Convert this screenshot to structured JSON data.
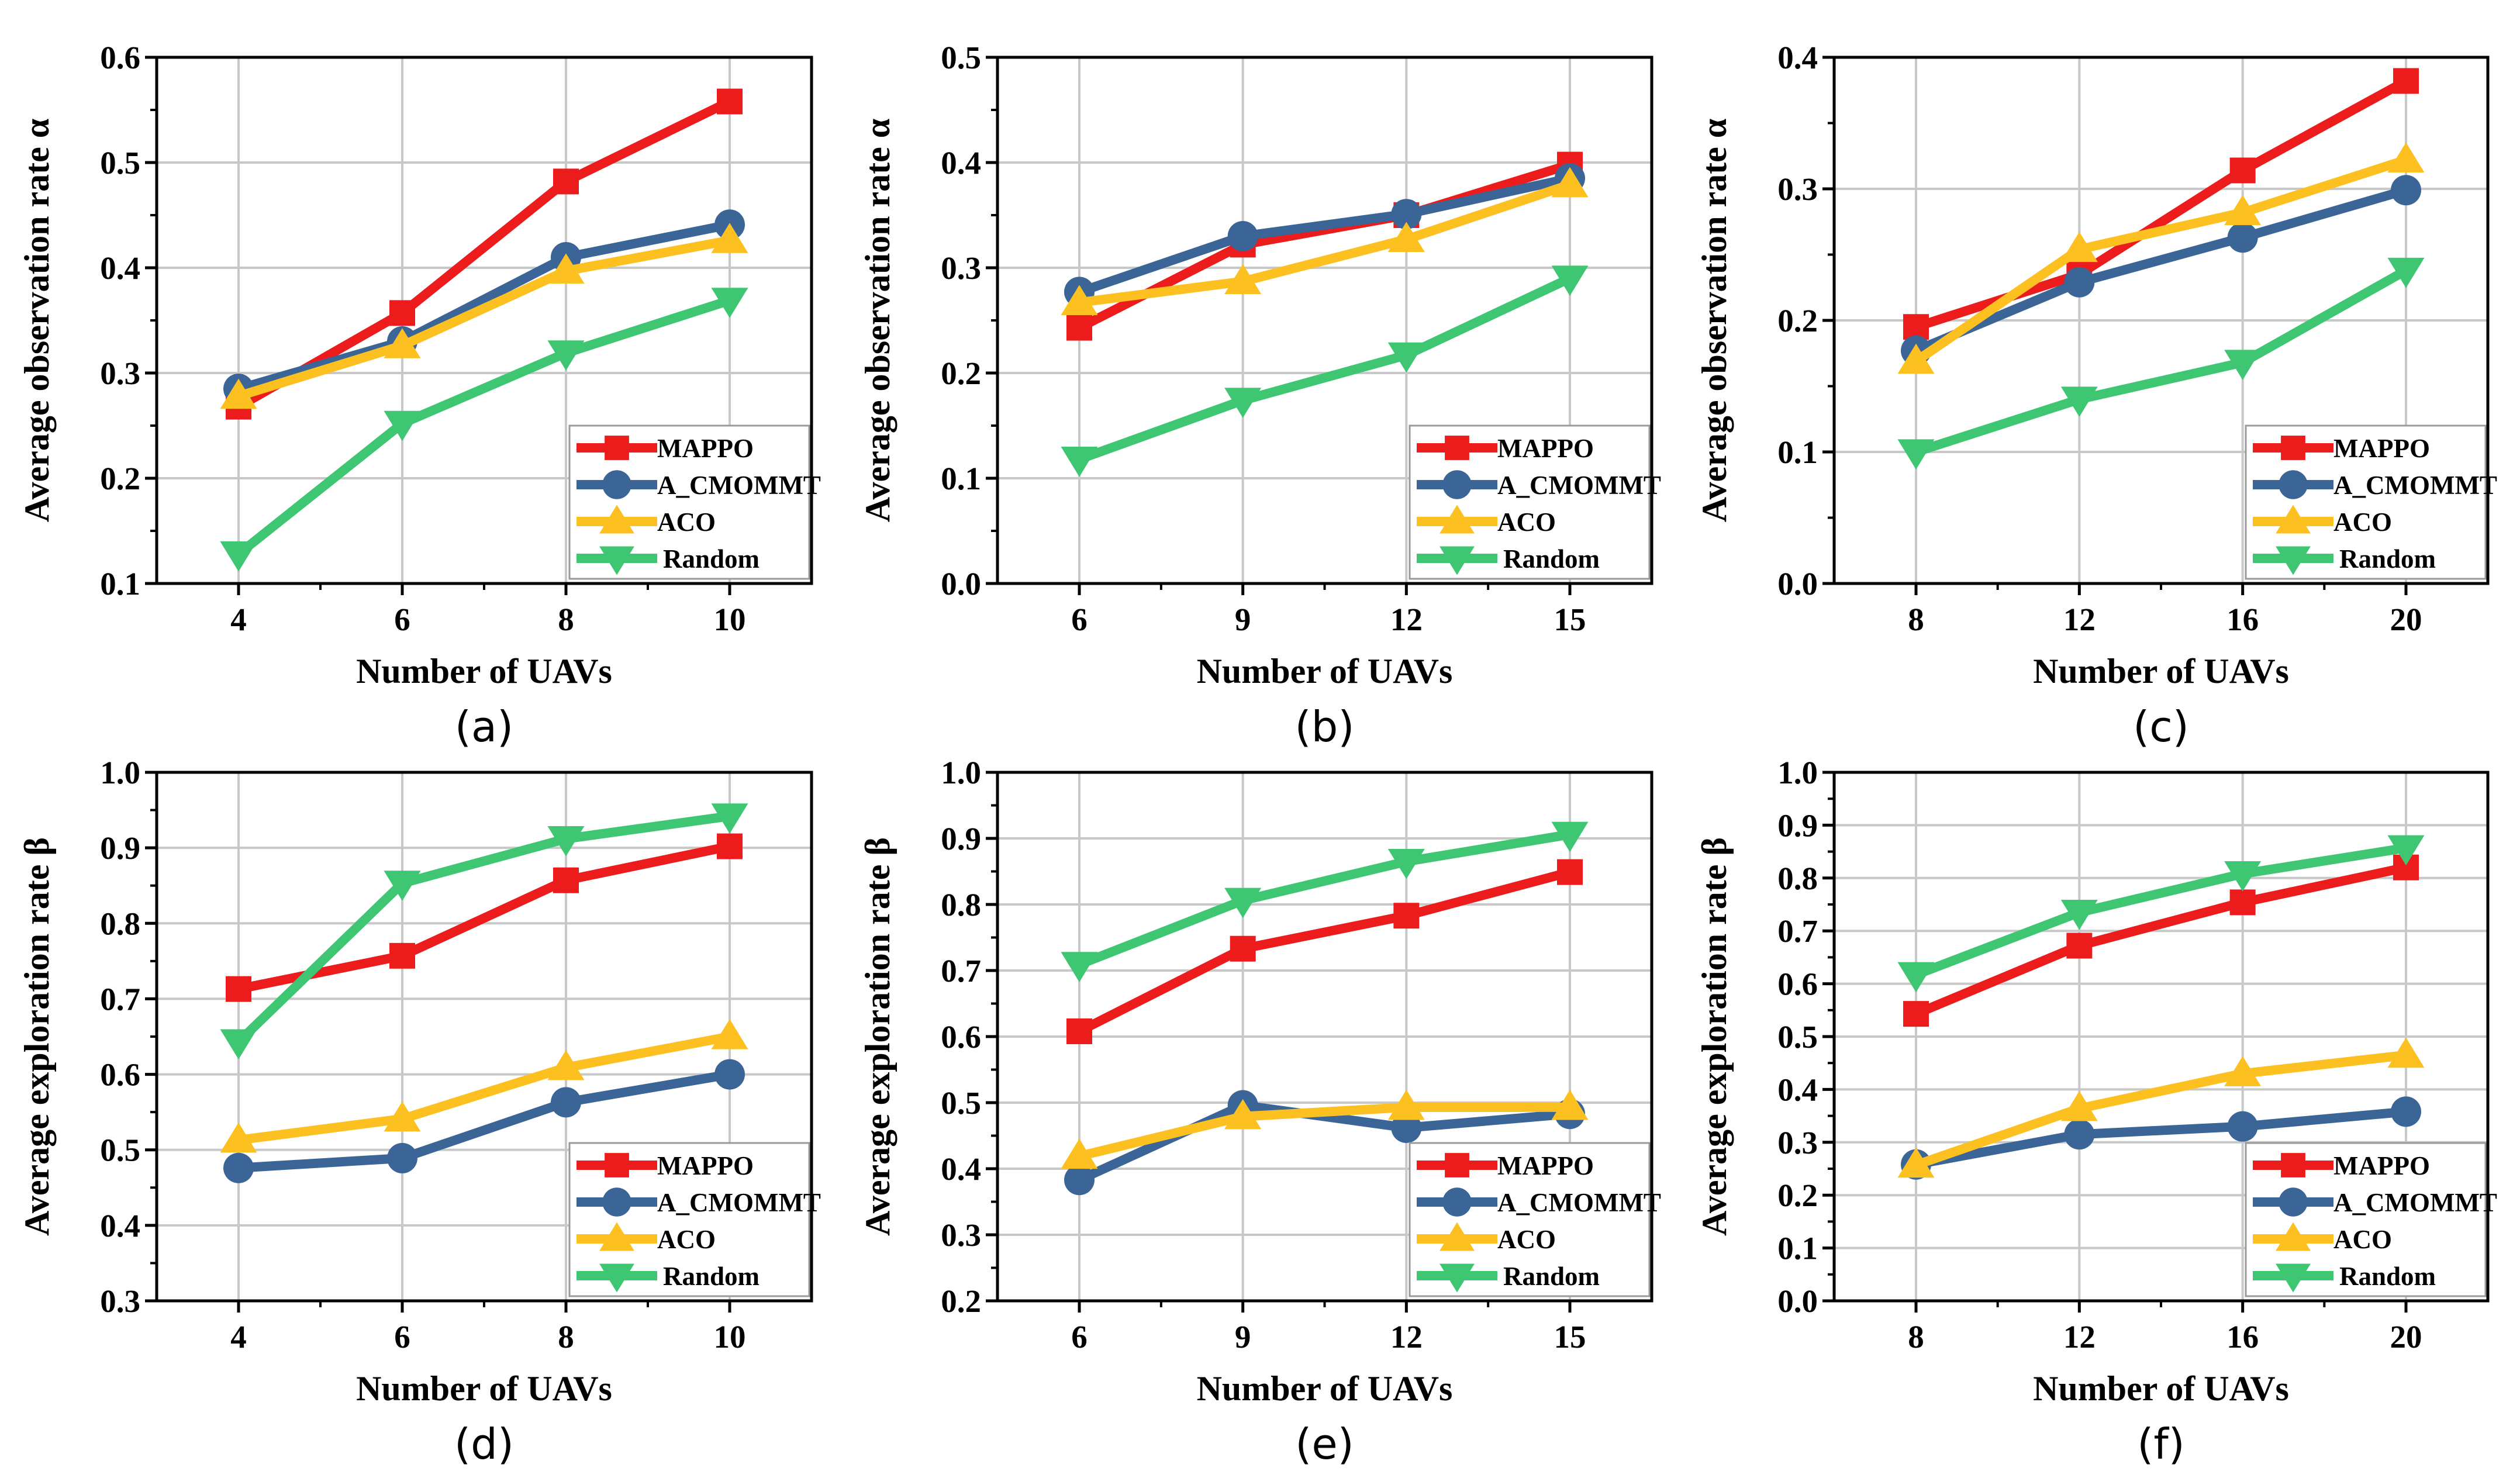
{
  "colors": {
    "MAPPO": "#ec1c1c",
    "A_CMOMMT": "#3a6596",
    "ACO": "#fcc021",
    "Random": "#3fc672",
    "grid": "#c8c8c8",
    "axis": "#000000"
  },
  "chart_data": [
    {
      "id": "a",
      "panel_label": "(a)",
      "type": "line",
      "title": "",
      "xlabel": "Number of UAVs",
      "ylabel": "Average observation rate α",
      "x": [
        4,
        6,
        8,
        10
      ],
      "x_ticks": [
        "4",
        "6",
        "8",
        "10"
      ],
      "ylim": [
        0.1,
        0.6
      ],
      "y_ticks": [
        "0.1",
        "0.2",
        "0.3",
        "0.4",
        "0.5",
        "0.6"
      ],
      "legend_position": "bottom-right",
      "series": [
        {
          "name": "MAPPO",
          "marker": "square",
          "values": [
            0.268,
            0.357,
            0.482,
            0.558
          ]
        },
        {
          "name": "A_CMOMMT",
          "marker": "circle",
          "values": [
            0.285,
            0.33,
            0.41,
            0.441
          ]
        },
        {
          "name": "ACO",
          "marker": "triangle-up",
          "values": [
            0.278,
            0.326,
            0.397,
            0.426
          ]
        },
        {
          "name": "Random",
          "marker": "triangle-down",
          "values": [
            0.128,
            0.252,
            0.319,
            0.369
          ]
        }
      ]
    },
    {
      "id": "b",
      "panel_label": "(b)",
      "type": "line",
      "title": "",
      "xlabel": "Number of UAVs",
      "ylabel": "Average observation rate α",
      "x": [
        6,
        9,
        12,
        15
      ],
      "x_ticks": [
        "6",
        "9",
        "12",
        "15"
      ],
      "ylim": [
        0.0,
        0.5
      ],
      "y_ticks": [
        "0.0",
        "0.1",
        "0.2",
        "0.3",
        "0.4",
        "0.5"
      ],
      "legend_position": "bottom-right",
      "series": [
        {
          "name": "MAPPO",
          "marker": "square",
          "values": [
            0.243,
            0.322,
            0.35,
            0.398
          ]
        },
        {
          "name": "A_CMOMMT",
          "marker": "circle",
          "values": [
            0.277,
            0.33,
            0.351,
            0.385
          ]
        },
        {
          "name": "ACO",
          "marker": "triangle-up",
          "values": [
            0.267,
            0.287,
            0.327,
            0.379
          ]
        },
        {
          "name": "Random",
          "marker": "triangle-down",
          "values": [
            0.118,
            0.174,
            0.217,
            0.29
          ]
        }
      ]
    },
    {
      "id": "c",
      "panel_label": "(c)",
      "type": "line",
      "title": "",
      "xlabel": "Number of UAVs",
      "ylabel": "Average observation rate α",
      "x": [
        8,
        12,
        16,
        20
      ],
      "x_ticks": [
        "8",
        "12",
        "16",
        "20"
      ],
      "ylim": [
        0.0,
        0.4
      ],
      "y_ticks": [
        "0.0",
        "0.1",
        "0.2",
        "0.3",
        "0.4"
      ],
      "legend_position": "bottom-right",
      "series": [
        {
          "name": "MAPPO",
          "marker": "square",
          "values": [
            0.195,
            0.235,
            0.314,
            0.382
          ]
        },
        {
          "name": "A_CMOMMT",
          "marker": "circle",
          "values": [
            0.177,
            0.229,
            0.263,
            0.299
          ]
        },
        {
          "name": "ACO",
          "marker": "triangle-up",
          "values": [
            0.169,
            0.254,
            0.282,
            0.322
          ]
        },
        {
          "name": "Random",
          "marker": "triangle-down",
          "values": [
            0.1,
            0.14,
            0.168,
            0.238
          ]
        }
      ]
    },
    {
      "id": "d",
      "panel_label": "(d)",
      "type": "line",
      "title": "",
      "xlabel": "Number of UAVs",
      "ylabel": "Average exploration rate β",
      "x": [
        4,
        6,
        8,
        10
      ],
      "x_ticks": [
        "4",
        "6",
        "8",
        "10"
      ],
      "ylim": [
        0.3,
        1.0
      ],
      "y_ticks": [
        "0.3",
        "0.4",
        "0.5",
        "0.6",
        "0.7",
        "0.8",
        "0.9",
        "1.0"
      ],
      "legend_position": "bottom-right",
      "series": [
        {
          "name": "MAPPO",
          "marker": "square",
          "values": [
            0.713,
            0.757,
            0.857,
            0.902
          ]
        },
        {
          "name": "A_CMOMMT",
          "marker": "circle",
          "values": [
            0.476,
            0.489,
            0.563,
            0.6
          ]
        },
        {
          "name": "ACO",
          "marker": "triangle-up",
          "values": [
            0.513,
            0.541,
            0.609,
            0.65
          ]
        },
        {
          "name": "Random",
          "marker": "triangle-down",
          "values": [
            0.643,
            0.853,
            0.912,
            0.942
          ]
        }
      ]
    },
    {
      "id": "e",
      "panel_label": "(e)",
      "type": "line",
      "title": "",
      "xlabel": "Number of UAVs",
      "ylabel": "Average exploration rate β",
      "x": [
        6,
        9,
        12,
        15
      ],
      "x_ticks": [
        "6",
        "9",
        "12",
        "15"
      ],
      "ylim": [
        0.2,
        1.0
      ],
      "y_ticks": [
        "0.2",
        "0.3",
        "0.4",
        "0.5",
        "0.6",
        "0.7",
        "0.8",
        "0.9",
        "1.0"
      ],
      "legend_position": "bottom-right",
      "series": [
        {
          "name": "MAPPO",
          "marker": "square",
          "values": [
            0.608,
            0.733,
            0.783,
            0.849
          ]
        },
        {
          "name": "A_CMOMMT",
          "marker": "circle",
          "values": [
            0.383,
            0.496,
            0.462,
            0.483
          ]
        },
        {
          "name": "ACO",
          "marker": "triangle-up",
          "values": [
            0.419,
            0.479,
            0.493,
            0.493
          ]
        },
        {
          "name": "Random",
          "marker": "triangle-down",
          "values": [
            0.709,
            0.806,
            0.865,
            0.906
          ]
        }
      ]
    },
    {
      "id": "f",
      "panel_label": "(f)",
      "type": "line",
      "title": "",
      "xlabel": "Number of UAVs",
      "ylabel": "Average exploration rate β",
      "x": [
        8,
        12,
        16,
        20
      ],
      "x_ticks": [
        "8",
        "12",
        "16",
        "20"
      ],
      "ylim": [
        0.0,
        1.0
      ],
      "y_ticks": [
        "0.0",
        "0.1",
        "0.2",
        "0.3",
        "0.4",
        "0.5",
        "0.6",
        "0.7",
        "0.8",
        "0.9",
        "1.0"
      ],
      "legend_position": "bottom-right",
      "series": [
        {
          "name": "MAPPO",
          "marker": "square",
          "values": [
            0.543,
            0.672,
            0.754,
            0.82
          ]
        },
        {
          "name": "A_CMOMMT",
          "marker": "circle",
          "values": [
            0.258,
            0.315,
            0.33,
            0.358
          ]
        },
        {
          "name": "ACO",
          "marker": "triangle-up",
          "values": [
            0.257,
            0.364,
            0.43,
            0.465
          ]
        },
        {
          "name": "Random",
          "marker": "triangle-down",
          "values": [
            0.617,
            0.735,
            0.808,
            0.857
          ]
        }
      ]
    }
  ]
}
